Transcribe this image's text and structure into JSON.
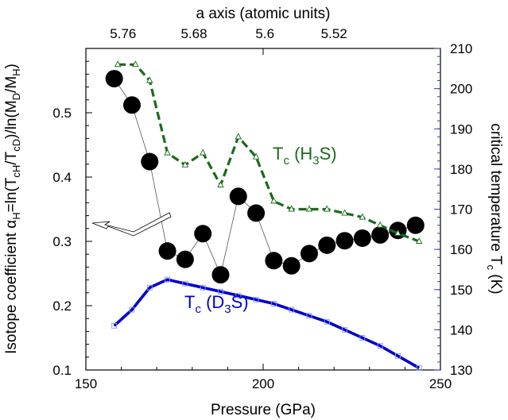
{
  "chart_data": {
    "type": "line",
    "xlabel": "Pressure (GPa)",
    "xlim": [
      150,
      250
    ],
    "xticks": [
      150,
      200,
      250
    ],
    "top_axis": {
      "label": "a axis (atomic units)",
      "ticks": [
        "5.76",
        "5.68",
        "5.6",
        "5.52"
      ],
      "tick_pressures": [
        160.5,
        180.5,
        200.5,
        220
      ]
    },
    "ylabel_left_parts": [
      "Isotope coefficient α",
      "H",
      "=ln(T",
      "cH",
      "/T",
      "cD",
      ")/ln(M",
      "D",
      "/M",
      "H",
      ")"
    ],
    "ylim_left": [
      0.1,
      0.6
    ],
    "yticks_left": [
      0.1,
      0.2,
      0.3,
      0.4,
      0.5
    ],
    "ylabel_right_parts": [
      "critical temperature T",
      "c",
      " (K)"
    ],
    "ylim_right": [
      130,
      210
    ],
    "yticks_right": [
      130,
      140,
      150,
      160,
      170,
      180,
      190,
      200,
      210
    ],
    "series": [
      {
        "axis": "left",
        "style": "circles",
        "color": "#000000",
        "x": [
          158,
          163,
          168,
          173,
          178,
          183,
          188,
          193,
          198,
          203,
          208,
          213,
          218,
          223,
          228,
          233,
          238,
          243
        ],
        "y": [
          0.553,
          0.512,
          0.424,
          0.285,
          0.272,
          0.312,
          0.248,
          0.37,
          0.344,
          0.27,
          0.262,
          0.281,
          0.294,
          0.301,
          0.305,
          0.31,
          0.317,
          0.325
        ]
      },
      {
        "axis": "right",
        "style": "dashed-triangles",
        "color": "#1a6b1a",
        "name_parts": [
          "T",
          "c",
          " (H",
          "3",
          "S)"
        ],
        "x": [
          159,
          164,
          168,
          173,
          178,
          183,
          188,
          193,
          198,
          203,
          208,
          213,
          218,
          223,
          228,
          233,
          238,
          244
        ],
        "y": [
          206,
          206,
          202,
          184,
          181,
          184,
          176,
          188,
          183,
          172,
          170,
          170,
          170,
          169,
          168,
          166,
          164,
          162
        ]
      },
      {
        "axis": "right",
        "style": "solid-squares",
        "color": "#0000cc",
        "name_parts": [
          "T",
          "c",
          " (D",
          "3",
          "S)"
        ],
        "x": [
          158,
          163,
          168,
          173,
          178,
          183,
          188,
          193,
          198,
          203,
          208,
          213,
          218,
          223,
          228,
          233,
          238,
          244
        ],
        "y": [
          141,
          145,
          150.5,
          152.5,
          151.5,
          150.5,
          149.5,
          148.5,
          147.5,
          146.5,
          145,
          143.5,
          142,
          140,
          138,
          136,
          133.5,
          130.5
        ]
      }
    ],
    "annotation": "arrow pointing to left axis"
  }
}
